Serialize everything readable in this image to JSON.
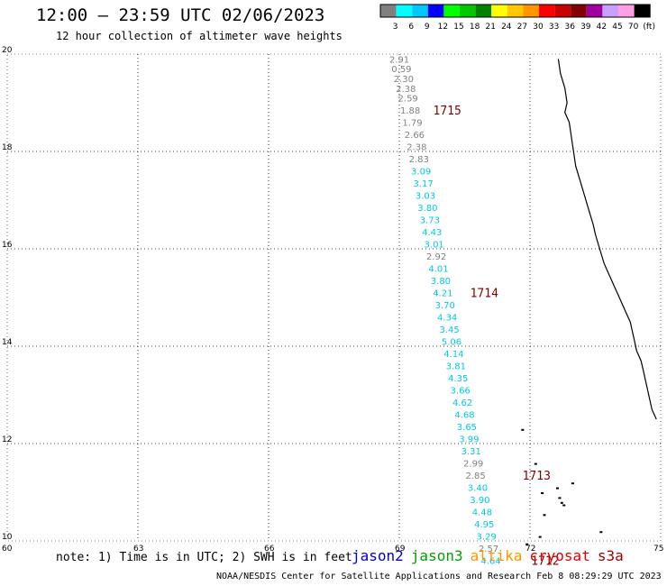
{
  "header": {
    "title": "12:00 — 23:59 UTC 02/06/2023",
    "subtitle": "12 hour collection of altimeter wave heights"
  },
  "color_scale": {
    "labels": [
      "3",
      "6",
      "9",
      "12",
      "15",
      "18",
      "21",
      "24",
      "27",
      "30",
      "33",
      "36",
      "39",
      "42",
      "45",
      "70",
      "(ft)"
    ],
    "colors": [
      "#808080",
      "#00ffff",
      "#00c8ff",
      "#0000ff",
      "#00ff00",
      "#00c800",
      "#008200",
      "#ffff00",
      "#ffc800",
      "#ff9600",
      "#ff0000",
      "#c80000",
      "#820000",
      "#a000a0",
      "#c8a0ff",
      "#ffa0e6",
      "#000000"
    ]
  },
  "axes": {
    "x_ticks": [
      "60",
      "63",
      "66",
      "69",
      "72",
      "75"
    ],
    "x_values": [
      60,
      63,
      66,
      69,
      72,
      75
    ],
    "y_ticks": [
      "20",
      "18",
      "16",
      "14",
      "12",
      "10"
    ],
    "y_values": [
      20,
      18,
      16,
      14,
      12,
      10
    ],
    "x_range": [
      60,
      75
    ],
    "y_range": [
      10,
      20
    ],
    "grid": "dotted"
  },
  "track_colors": {
    "gray": "#808080",
    "cyan": "#00c8e6",
    "pass": "#800000"
  },
  "wave_heights": [
    {
      "lon": 69.0,
      "lat": 19.9,
      "v": "2.91",
      "c": "gray"
    },
    {
      "lon": 69.05,
      "lat": 19.7,
      "v": "0.59",
      "c": "gray"
    },
    {
      "lon": 69.1,
      "lat": 19.5,
      "v": "2.30",
      "c": "gray"
    },
    {
      "lon": 69.15,
      "lat": 19.3,
      "v": "2.38",
      "c": "gray"
    },
    {
      "lon": 69.2,
      "lat": 19.1,
      "v": "2.59",
      "c": "gray"
    },
    {
      "lon": 69.25,
      "lat": 18.85,
      "v": "1.88",
      "c": "gray"
    },
    {
      "lon": 69.3,
      "lat": 18.6,
      "v": "1.79",
      "c": "gray"
    },
    {
      "lon": 69.35,
      "lat": 18.35,
      "v": "2.66",
      "c": "gray"
    },
    {
      "lon": 69.4,
      "lat": 18.1,
      "v": "2.38",
      "c": "gray"
    },
    {
      "lon": 69.45,
      "lat": 17.85,
      "v": "2.83",
      "c": "gray"
    },
    {
      "lon": 69.5,
      "lat": 17.6,
      "v": "3.09",
      "c": "cyan"
    },
    {
      "lon": 69.55,
      "lat": 17.35,
      "v": "3.17",
      "c": "cyan"
    },
    {
      "lon": 69.6,
      "lat": 17.1,
      "v": "3.03",
      "c": "cyan"
    },
    {
      "lon": 69.65,
      "lat": 16.85,
      "v": "3.80",
      "c": "cyan"
    },
    {
      "lon": 69.7,
      "lat": 16.6,
      "v": "3.73",
      "c": "cyan"
    },
    {
      "lon": 69.75,
      "lat": 16.35,
      "v": "4.43",
      "c": "cyan"
    },
    {
      "lon": 69.8,
      "lat": 16.1,
      "v": "3.01",
      "c": "cyan"
    },
    {
      "lon": 69.85,
      "lat": 15.85,
      "v": "2.92",
      "c": "gray"
    },
    {
      "lon": 69.9,
      "lat": 15.6,
      "v": "4.01",
      "c": "cyan"
    },
    {
      "lon": 69.95,
      "lat": 15.35,
      "v": "3.80",
      "c": "cyan"
    },
    {
      "lon": 70.0,
      "lat": 15.1,
      "v": "4.21",
      "c": "cyan"
    },
    {
      "lon": 70.05,
      "lat": 14.85,
      "v": "3.70",
      "c": "cyan"
    },
    {
      "lon": 70.1,
      "lat": 14.6,
      "v": "4.34",
      "c": "cyan"
    },
    {
      "lon": 70.15,
      "lat": 14.35,
      "v": "3.45",
      "c": "cyan"
    },
    {
      "lon": 70.2,
      "lat": 14.1,
      "v": "5.06",
      "c": "cyan"
    },
    {
      "lon": 70.25,
      "lat": 13.85,
      "v": "4.14",
      "c": "cyan"
    },
    {
      "lon": 70.3,
      "lat": 13.6,
      "v": "3.81",
      "c": "cyan"
    },
    {
      "lon": 70.35,
      "lat": 13.35,
      "v": "4.35",
      "c": "cyan"
    },
    {
      "lon": 70.4,
      "lat": 13.1,
      "v": "3.66",
      "c": "cyan"
    },
    {
      "lon": 70.45,
      "lat": 12.85,
      "v": "4.62",
      "c": "cyan"
    },
    {
      "lon": 70.5,
      "lat": 12.6,
      "v": "4.68",
      "c": "cyan"
    },
    {
      "lon": 70.55,
      "lat": 12.35,
      "v": "3.65",
      "c": "cyan"
    },
    {
      "lon": 70.6,
      "lat": 12.1,
      "v": "3.99",
      "c": "cyan"
    },
    {
      "lon": 70.65,
      "lat": 11.85,
      "v": "3.31",
      "c": "cyan"
    },
    {
      "lon": 70.7,
      "lat": 11.6,
      "v": "2.99",
      "c": "gray"
    },
    {
      "lon": 70.75,
      "lat": 11.35,
      "v": "2.85",
      "c": "gray"
    },
    {
      "lon": 70.8,
      "lat": 11.1,
      "v": "3.40",
      "c": "cyan"
    },
    {
      "lon": 70.85,
      "lat": 10.85,
      "v": "3.90",
      "c": "cyan"
    },
    {
      "lon": 70.9,
      "lat": 10.6,
      "v": "4.48",
      "c": "cyan"
    },
    {
      "lon": 70.95,
      "lat": 10.35,
      "v": "4.95",
      "c": "cyan"
    },
    {
      "lon": 71.0,
      "lat": 10.1,
      "v": "3.29",
      "c": "cyan"
    },
    {
      "lon": 71.05,
      "lat": 9.85,
      "v": "2.57",
      "c": "gray"
    },
    {
      "lon": 71.1,
      "lat": 9.6,
      "v": "4.64",
      "c": "cyan"
    }
  ],
  "pass_labels": [
    {
      "lon": 70.1,
      "lat": 18.85,
      "text": "1715"
    },
    {
      "lon": 70.95,
      "lat": 15.1,
      "text": "1714"
    },
    {
      "lon": 72.15,
      "lat": 11.35,
      "text": "1713"
    },
    {
      "lon": 72.35,
      "lat": 9.6,
      "text": "1712"
    }
  ],
  "footer": {
    "note": "note: 1) Time is in UTC; 2) SWH is in feet",
    "credit": "NOAA/NESDIS Center for Satellite Applications and Research   Feb  8 08:29:29 UTC 2023",
    "satellites": [
      {
        "name": "jason2",
        "color": "#0000c8"
      },
      {
        "name": "jason3",
        "color": "#00a000"
      },
      {
        "name": "altika",
        "color": "#ff9600"
      },
      {
        "name": "cryosat",
        "color": "#e00000"
      },
      {
        "name": "s3a",
        "color": "#a00000"
      }
    ]
  },
  "coastline": [
    [
      72.65,
      19.9
    ],
    [
      72.7,
      19.6
    ],
    [
      72.8,
      19.3
    ],
    [
      72.85,
      19.0
    ],
    [
      72.8,
      18.8
    ],
    [
      72.9,
      18.6
    ],
    [
      72.95,
      18.3
    ],
    [
      73.0,
      18.0
    ],
    [
      73.05,
      17.7
    ],
    [
      73.15,
      17.4
    ],
    [
      73.25,
      17.1
    ],
    [
      73.35,
      16.8
    ],
    [
      73.45,
      16.5
    ],
    [
      73.5,
      16.3
    ],
    [
      73.6,
      16.0
    ],
    [
      73.7,
      15.7
    ],
    [
      73.8,
      15.5
    ],
    [
      73.9,
      15.3
    ],
    [
      74.0,
      15.1
    ],
    [
      74.1,
      14.9
    ],
    [
      74.2,
      14.7
    ],
    [
      74.3,
      14.5
    ],
    [
      74.35,
      14.3
    ],
    [
      74.4,
      14.1
    ],
    [
      74.45,
      13.9
    ],
    [
      74.55,
      13.7
    ],
    [
      74.6,
      13.5
    ],
    [
      74.65,
      13.3
    ],
    [
      74.7,
      13.1
    ],
    [
      74.75,
      12.9
    ],
    [
      74.8,
      12.7
    ],
    [
      74.9,
      12.5
    ]
  ],
  "islands": [
    [
      71.8,
      12.3
    ],
    [
      72.1,
      11.6
    ],
    [
      72.25,
      11.0
    ],
    [
      72.6,
      11.1
    ],
    [
      72.75,
      10.75
    ],
    [
      72.95,
      11.2
    ],
    [
      72.65,
      10.9
    ],
    [
      72.3,
      10.55
    ],
    [
      72.2,
      10.1
    ],
    [
      71.9,
      9.95
    ],
    [
      73.6,
      10.2
    ],
    [
      72.7,
      10.8
    ]
  ]
}
